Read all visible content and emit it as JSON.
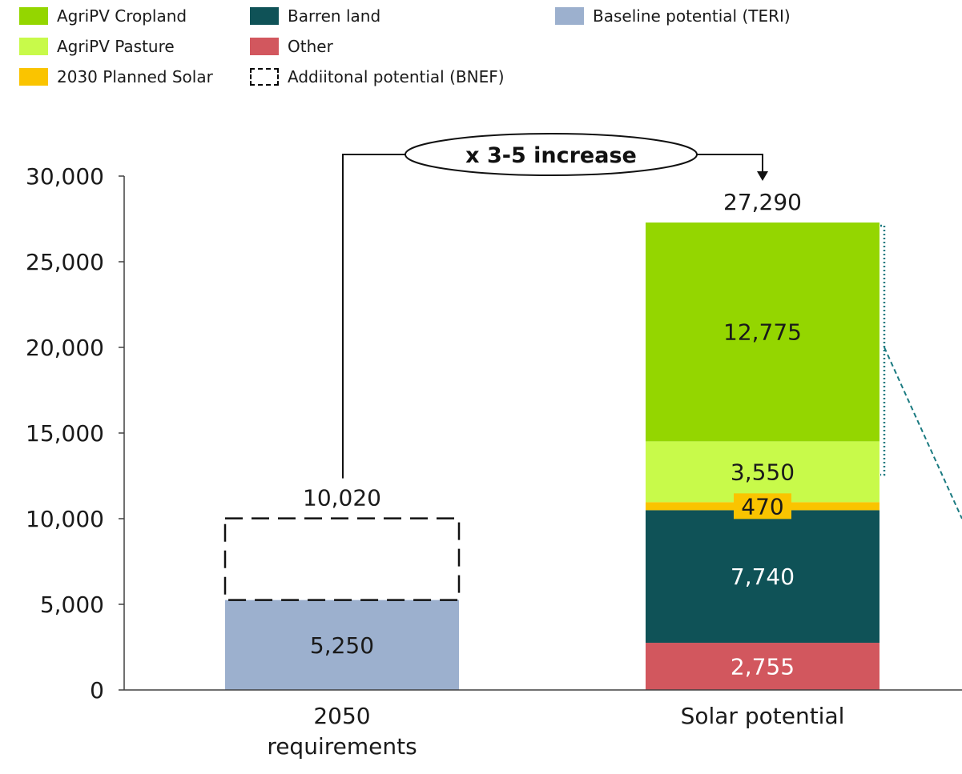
{
  "legend": [
    {
      "key": "agripv_cropland",
      "label": "AgriPV Cropland",
      "color": "#94d600"
    },
    {
      "key": "barren_land",
      "label": "Barren land",
      "color": "#0f5257"
    },
    {
      "key": "baseline_teri",
      "label": "Baseline potential (TERI)",
      "color": "#9cb0ce"
    },
    {
      "key": "agripv_pasture",
      "label": "AgriPV Pasture",
      "color": "#c8fa4a"
    },
    {
      "key": "other",
      "label": "Other",
      "color": "#d2575e"
    },
    {
      "key": "planned_2030",
      "label": "2030 Planned Solar",
      "color": "#fac400"
    },
    {
      "key": "additional_bnef",
      "label": "Addiitonal potential (BNEF)",
      "color": "none"
    }
  ],
  "chart_data": {
    "type": "bar",
    "stacked": true,
    "categories": [
      "2050 requirements",
      "Solar potential"
    ],
    "ylim": [
      0,
      30000
    ],
    "yticks": [
      0,
      5000,
      10000,
      15000,
      20000,
      25000,
      30000
    ],
    "ytick_labels": [
      "0",
      "5,000",
      "10,000",
      "15,000",
      "20,000",
      "25,000",
      "30,000"
    ],
    "category_labels": [
      [
        "2050",
        "requirements"
      ],
      [
        "Solar potential"
      ]
    ],
    "stacks": [
      {
        "category": "2050 requirements",
        "total": 10020,
        "total_label": "10,020",
        "segments": [
          {
            "series": "baseline_teri",
            "value": 5250,
            "label": "5,250"
          },
          {
            "series": "additional_bnef",
            "value": 4770,
            "label": ""
          }
        ]
      },
      {
        "category": "Solar potential",
        "total": 27290,
        "total_label": "27,290",
        "segments": [
          {
            "series": "other",
            "value": 2755,
            "label": "2,755"
          },
          {
            "series": "barren_land",
            "value": 7740,
            "label": "7,740"
          },
          {
            "series": "planned_2030",
            "value": 470,
            "label": "470"
          },
          {
            "series": "agripv_pasture",
            "value": 3550,
            "label": "3,550"
          },
          {
            "series": "agripv_cropland",
            "value": 12775,
            "label": "12,775"
          }
        ]
      }
    ],
    "annotation": {
      "text": "x 3-5 increase",
      "from": "2050 requirements",
      "to": "Solar potential"
    }
  }
}
